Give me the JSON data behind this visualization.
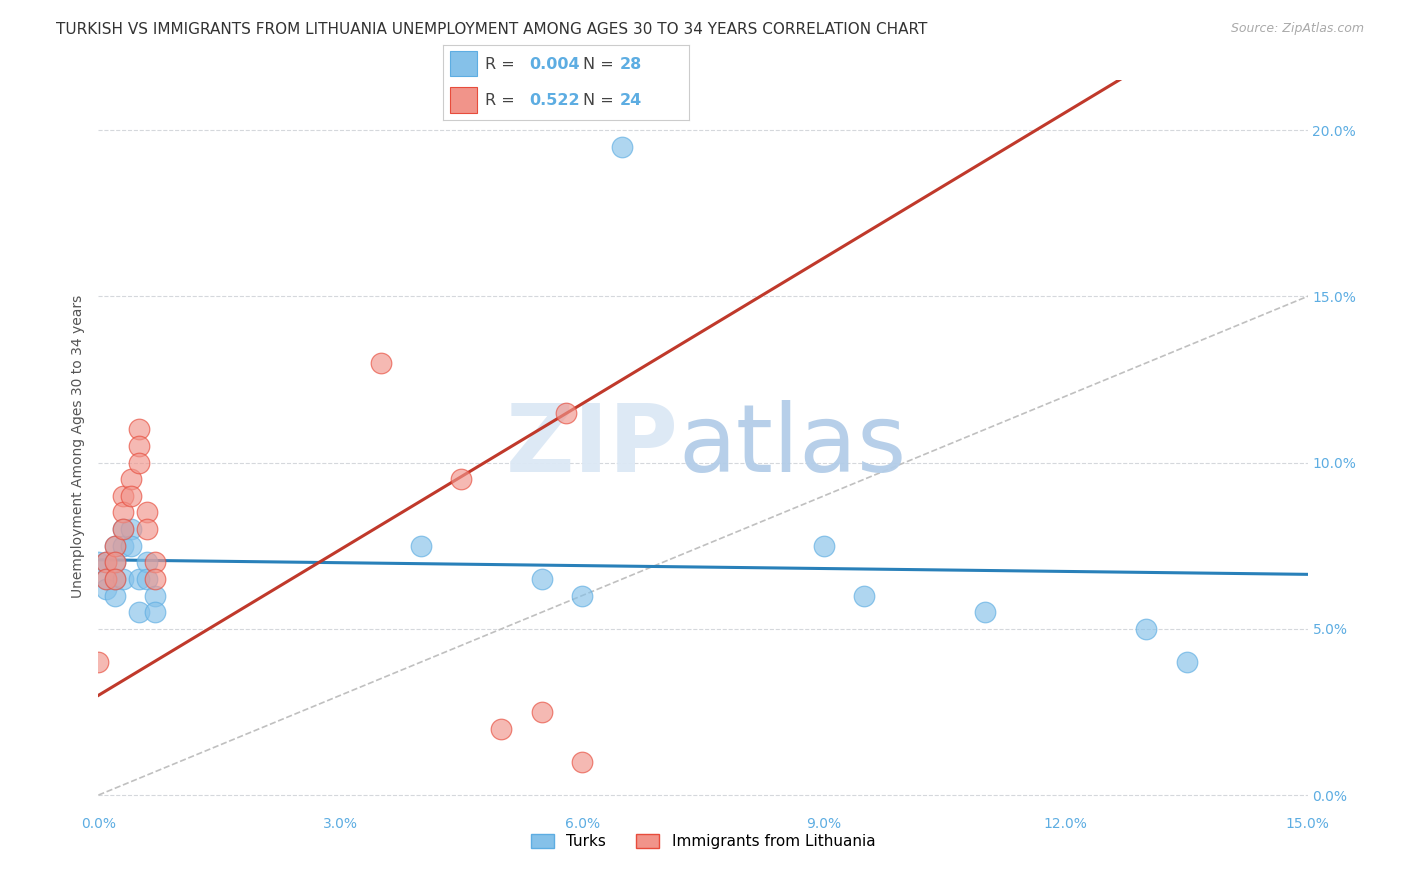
{
  "title": "TURKISH VS IMMIGRANTS FROM LITHUANIA UNEMPLOYMENT AMONG AGES 30 TO 34 YEARS CORRELATION CHART",
  "source": "Source: ZipAtlas.com",
  "ylabel": "Unemployment Among Ages 30 to 34 years",
  "xlim": [
    0.0,
    0.15
  ],
  "ylim": [
    -0.005,
    0.215
  ],
  "xticks": [
    0.0,
    0.03,
    0.06,
    0.09,
    0.12,
    0.15
  ],
  "xtick_labels": [
    "0.0%",
    "3.0%",
    "6.0%",
    "9.0%",
    "12.0%",
    "15.0%"
  ],
  "yticks": [
    0.0,
    0.05,
    0.1,
    0.15,
    0.2
  ],
  "ytick_labels": [
    "0.0%",
    "5.0%",
    "10.0%",
    "15.0%",
    "20.0%"
  ],
  "turks_x": [
    0.0,
    0.001,
    0.001,
    0.001,
    0.002,
    0.002,
    0.002,
    0.002,
    0.003,
    0.003,
    0.003,
    0.004,
    0.004,
    0.005,
    0.005,
    0.006,
    0.006,
    0.007,
    0.007,
    0.04,
    0.055,
    0.06,
    0.065,
    0.09,
    0.095,
    0.11,
    0.13,
    0.135
  ],
  "turks_y": [
    0.07,
    0.07,
    0.065,
    0.062,
    0.075,
    0.07,
    0.065,
    0.06,
    0.08,
    0.075,
    0.065,
    0.08,
    0.075,
    0.065,
    0.055,
    0.07,
    0.065,
    0.06,
    0.055,
    0.075,
    0.065,
    0.06,
    0.195,
    0.075,
    0.06,
    0.055,
    0.05,
    0.04
  ],
  "lithuania_x": [
    0.0,
    0.001,
    0.001,
    0.002,
    0.002,
    0.002,
    0.003,
    0.003,
    0.003,
    0.004,
    0.004,
    0.005,
    0.005,
    0.005,
    0.006,
    0.006,
    0.007,
    0.007,
    0.035,
    0.045,
    0.05,
    0.055,
    0.058,
    0.06
  ],
  "lithuania_y": [
    0.04,
    0.07,
    0.065,
    0.075,
    0.07,
    0.065,
    0.09,
    0.085,
    0.08,
    0.095,
    0.09,
    0.11,
    0.105,
    0.1,
    0.085,
    0.08,
    0.07,
    0.065,
    0.13,
    0.095,
    0.02,
    0.025,
    0.115,
    0.01
  ],
  "R_turks": 0.004,
  "N_turks": 28,
  "R_lithuania": 0.522,
  "N_lithuania": 24,
  "turk_color": "#85c1e9",
  "turk_color_edge": "#5dade2",
  "turk_reg_color": "#2980b9",
  "lithuania_color": "#f1948a",
  "lithuania_color_edge": "#e74c3c",
  "lithuania_reg_color": "#c0392b",
  "grid_color": "#d5d8dc",
  "diag_color": "#c0c0c0",
  "tick_color": "#5dade2",
  "background_color": "#ffffff",
  "title_fontsize": 11,
  "axis_label_fontsize": 10,
  "tick_fontsize": 10,
  "source_fontsize": 9
}
